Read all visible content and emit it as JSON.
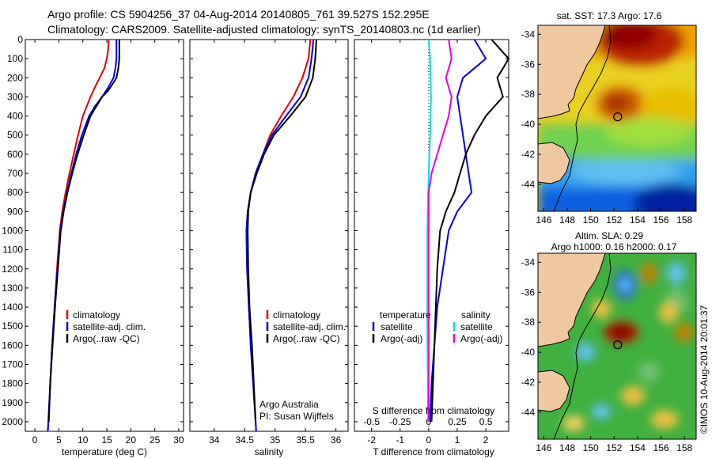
{
  "header": {
    "line1": "Argo profile: CS 5904256_37 04-Aug-2014 20140805_761 39.527S 152.295E",
    "line2": "Climatology: CARS2009. Satellite-adjusted climatology: synTS_20140803.nc (1d earlier)"
  },
  "chart_data": [
    {
      "type": "line",
      "id": "temperature",
      "xlabel": "temperature (deg C)",
      "xlim": [
        -2,
        31
      ],
      "xticks": [
        0,
        5,
        10,
        15,
        20,
        25,
        30
      ],
      "ylim": [
        0,
        2050
      ],
      "yticks": [
        0,
        100,
        200,
        300,
        400,
        500,
        600,
        700,
        800,
        900,
        1000,
        1100,
        1200,
        1300,
        1400,
        1500,
        1600,
        1700,
        1800,
        1900,
        2000
      ],
      "legend": [
        "climatology",
        "satellite-adj. clim.",
        "Argo(..raw -QC)"
      ],
      "series": [
        {
          "name": "climatology",
          "color": "#e00000",
          "points": [
            [
              15.4,
              0
            ],
            [
              15.3,
              50
            ],
            [
              15.0,
              100
            ],
            [
              14.5,
              150
            ],
            [
              13.5,
              200
            ],
            [
              12.5,
              250
            ],
            [
              11.6,
              300
            ],
            [
              10.8,
              350
            ],
            [
              10.0,
              400
            ],
            [
              9.0,
              500
            ],
            [
              8.1,
              600
            ],
            [
              7.2,
              700
            ],
            [
              6.4,
              800
            ],
            [
              5.7,
              900
            ],
            [
              5.2,
              1000
            ],
            [
              4.6,
              1200
            ],
            [
              4.1,
              1400
            ],
            [
              3.6,
              1600
            ],
            [
              3.2,
              1800
            ],
            [
              2.8,
              2000
            ],
            [
              2.7,
              2050
            ]
          ]
        },
        {
          "name": "satellite-adj. clim.",
          "color": "#0000e0",
          "points": [
            [
              17.0,
              0
            ],
            [
              17.0,
              100
            ],
            [
              16.8,
              150
            ],
            [
              16.4,
              200
            ],
            [
              15.3,
              250
            ],
            [
              14.0,
              300
            ],
            [
              12.5,
              350
            ],
            [
              11.3,
              400
            ],
            [
              9.8,
              500
            ],
            [
              8.6,
              600
            ],
            [
              7.6,
              700
            ],
            [
              6.7,
              800
            ],
            [
              5.9,
              900
            ],
            [
              5.3,
              1000
            ],
            [
              4.7,
              1200
            ],
            [
              4.1,
              1400
            ],
            [
              3.6,
              1600
            ],
            [
              3.2,
              1800
            ],
            [
              2.8,
              2000
            ],
            [
              2.7,
              2050
            ]
          ]
        },
        {
          "name": "Argo(..raw -QC)",
          "color": "#000000",
          "points": [
            [
              17.6,
              0
            ],
            [
              17.6,
              100
            ],
            [
              17.4,
              150
            ],
            [
              17.0,
              200
            ],
            [
              16.0,
              240
            ],
            [
              15.2,
              270
            ],
            [
              14.0,
              300
            ],
            [
              12.8,
              350
            ],
            [
              11.6,
              400
            ],
            [
              10.2,
              500
            ],
            [
              8.9,
              600
            ],
            [
              7.8,
              700
            ],
            [
              6.8,
              800
            ],
            [
              6.0,
              900
            ],
            [
              5.4,
              1000
            ],
            [
              4.8,
              1200
            ],
            [
              4.2,
              1400
            ],
            [
              3.7,
              1600
            ],
            [
              3.2,
              1800
            ],
            [
              2.9,
              2000
            ]
          ]
        }
      ]
    },
    {
      "type": "line",
      "id": "salinity",
      "xlabel": "salinity",
      "xlim": [
        33.6,
        36.2
      ],
      "xticks": [
        34,
        34.5,
        35,
        35.5,
        36
      ],
      "ylim": [
        0,
        2050
      ],
      "legend": [
        "climatology",
        "satellite-adj. clim.",
        "Argo(..raw -QC)"
      ],
      "annotation": [
        "Argo Australia",
        "PI: Susan Wijffels"
      ],
      "series": [
        {
          "name": "climatology",
          "color": "#e00000",
          "points": [
            [
              35.58,
              0
            ],
            [
              35.55,
              100
            ],
            [
              35.45,
              200
            ],
            [
              35.3,
              300
            ],
            [
              35.1,
              400
            ],
            [
              34.92,
              500
            ],
            [
              34.8,
              600
            ],
            [
              34.68,
              700
            ],
            [
              34.6,
              800
            ],
            [
              34.55,
              900
            ],
            [
              34.53,
              1000
            ],
            [
              34.54,
              1200
            ],
            [
              34.57,
              1400
            ],
            [
              34.6,
              1600
            ],
            [
              34.64,
              1800
            ],
            [
              34.68,
              2000
            ],
            [
              34.69,
              2050
            ]
          ]
        },
        {
          "name": "satellite-adj. clim.",
          "color": "#0000e0",
          "points": [
            [
              35.63,
              0
            ],
            [
              35.6,
              100
            ],
            [
              35.55,
              200
            ],
            [
              35.42,
              300
            ],
            [
              35.18,
              400
            ],
            [
              34.95,
              500
            ],
            [
              34.8,
              600
            ],
            [
              34.68,
              700
            ],
            [
              34.6,
              800
            ],
            [
              34.55,
              900
            ],
            [
              34.53,
              1000
            ],
            [
              34.54,
              1200
            ],
            [
              34.57,
              1400
            ],
            [
              34.6,
              1600
            ],
            [
              34.64,
              1800
            ],
            [
              34.68,
              2000
            ],
            [
              34.69,
              2050
            ]
          ]
        },
        {
          "name": "Argo(..raw -QC)",
          "color": "#000000",
          "points": [
            [
              35.68,
              0
            ],
            [
              35.66,
              100
            ],
            [
              35.62,
              200
            ],
            [
              35.5,
              300
            ],
            [
              35.25,
              400
            ],
            [
              34.98,
              500
            ],
            [
              34.82,
              600
            ],
            [
              34.7,
              700
            ],
            [
              34.6,
              800
            ],
            [
              34.56,
              900
            ],
            [
              34.55,
              1000
            ],
            [
              34.56,
              1200
            ],
            [
              34.58,
              1400
            ],
            [
              34.62,
              1600
            ],
            [
              34.65,
              1800
            ],
            [
              34.68,
              2000
            ]
          ]
        }
      ]
    },
    {
      "type": "line",
      "id": "difference",
      "xlabel": "T difference from climatology",
      "xlabel_top": "S difference from climatology",
      "xlim": [
        -2.6,
        2.8
      ],
      "xticks": [
        -2,
        -1,
        0,
        1,
        2
      ],
      "xticks_s": [
        -0.5,
        -0.25,
        0,
        0.25,
        0.5
      ],
      "ylim": [
        0,
        2050
      ],
      "legend_headers": [
        "temperature",
        "salinity"
      ],
      "legend": [
        "satellite",
        "Argo(-adj)",
        "satellite",
        "Argo(-adj)"
      ],
      "series": [
        {
          "name": "temperature satellite",
          "color": "#0000e0",
          "points": [
            [
              1.6,
              0
            ],
            [
              1.8,
              50
            ],
            [
              2.0,
              100
            ],
            [
              1.6,
              150
            ],
            [
              1.2,
              200
            ],
            [
              1.0,
              300
            ],
            [
              1.1,
              400
            ],
            [
              1.2,
              500
            ],
            [
              1.3,
              600
            ],
            [
              1.4,
              700
            ],
            [
              1.5,
              800
            ],
            [
              1.0,
              900
            ],
            [
              0.7,
              1000
            ],
            [
              0.5,
              1200
            ],
            [
              0.3,
              1400
            ],
            [
              0.2,
              1600
            ],
            [
              0.1,
              1800
            ],
            [
              0.05,
              2000
            ]
          ]
        },
        {
          "name": "temperature Argo(-adj)",
          "color": "#000000",
          "points": [
            [
              2.2,
              0
            ],
            [
              2.5,
              50
            ],
            [
              2.8,
              100
            ],
            [
              2.4,
              200
            ],
            [
              2.6,
              300
            ],
            [
              2.0,
              400
            ],
            [
              1.6,
              500
            ],
            [
              1.3,
              600
            ],
            [
              1.1,
              700
            ],
            [
              0.9,
              800
            ],
            [
              0.6,
              900
            ],
            [
              0.4,
              1000
            ],
            [
              0.3,
              1200
            ],
            [
              0.25,
              1400
            ],
            [
              0.2,
              1600
            ],
            [
              0.15,
              1800
            ],
            [
              0.1,
              2000
            ]
          ]
        },
        {
          "name": "salinity satellite",
          "color": "#00dddd",
          "points": [
            [
              0.0,
              0
            ],
            [
              0.05,
              100
            ],
            [
              0.08,
              300
            ],
            [
              0.05,
              500
            ],
            [
              0.0,
              700
            ],
            [
              -0.05,
              1000
            ],
            [
              -0.05,
              1500
            ],
            [
              -0.02,
              2000
            ]
          ]
        },
        {
          "name": "salinity Argo(-adj)",
          "color": "#e000e0",
          "points": [
            [
              0.7,
              0
            ],
            [
              0.8,
              100
            ],
            [
              0.6,
              200
            ],
            [
              0.8,
              300
            ],
            [
              0.7,
              400
            ],
            [
              0.5,
              500
            ],
            [
              0.3,
              600
            ],
            [
              0.1,
              700
            ],
            [
              0.0,
              800
            ],
            [
              0.0,
              1000
            ],
            [
              0.0,
              1500
            ],
            [
              0.0,
              2000
            ]
          ]
        }
      ]
    },
    {
      "type": "heatmap",
      "id": "map-sst",
      "title": "sat. SST: 17.3 Argo: 17.6",
      "xlim": [
        145.5,
        159
      ],
      "xticks": [
        146,
        148,
        150,
        152,
        154,
        156,
        158
      ],
      "ylim": [
        -45.8,
        -33.4
      ],
      "yticks": [
        -34,
        -36,
        -38,
        -40,
        -42,
        -44
      ],
      "marker": [
        152.3,
        -39.5
      ]
    },
    {
      "type": "heatmap",
      "id": "map-sla",
      "title": "Altim. SLA: 0.29",
      "subtitle": "Argo h1000: 0.16 h2000: 0.17",
      "xlim": [
        145.5,
        159
      ],
      "xticks": [
        146,
        148,
        150,
        152,
        154,
        156,
        158
      ],
      "ylim": [
        -45.8,
        -33.4
      ],
      "yticks": [
        -34,
        -36,
        -38,
        -40,
        -42,
        -44
      ],
      "marker": [
        152.3,
        -39.5
      ]
    }
  ],
  "credit": "©IMOS 10-Aug-2014 20:01:37"
}
